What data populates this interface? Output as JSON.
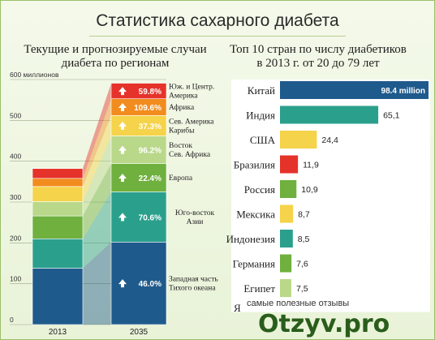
{
  "title": "Статистика сахарного диабета",
  "left_subtitle_1": "Текущие и прогнозируемые случаи",
  "left_subtitle_2": "диабета по регионам",
  "right_subtitle_1": "Топ 10 стран по числу диабетиков",
  "right_subtitle_2": "в 2013 г. от 20 до 79 лет",
  "watermark_text": "самые полезные отзывы",
  "watermark_logo": "Otzyv.pro",
  "partial_last_row": "Я",
  "chart_data": [
    {
      "type": "bar",
      "stacked": true,
      "categories": [
        "2013",
        "2035"
      ],
      "ylim": [
        0,
        600
      ],
      "yticks": [
        "0",
        "100",
        "200",
        "300",
        "400",
        "500",
        "600 миллионов"
      ],
      "series": [
        {
          "name": "Западная часть Тихого океана",
          "color": "#1f5a8c",
          "values": [
            138,
            202
          ],
          "growth": "46.0%"
        },
        {
          "name": "Юго-восток Азии",
          "color": "#2aa08c",
          "values": [
            72,
            123
          ],
          "growth": "70.6%"
        },
        {
          "name": "Европа",
          "color": "#6fb03e",
          "values": [
            56,
            69
          ],
          "growth": "22.4%"
        },
        {
          "name": "Восток Сев. Африка",
          "color": "#b9d88a",
          "values": [
            35,
            68
          ],
          "growth": "96.2%"
        },
        {
          "name": "Сев. Америка Карибы",
          "color": "#f5d34a",
          "values": [
            37,
            50
          ],
          "growth": "37.3%"
        },
        {
          "name": "Африка",
          "color": "#f28c1e",
          "values": [
            20,
            41
          ],
          "growth": "109.6%"
        },
        {
          "name": "Юж. и Центр. Америка",
          "color": "#e5322a",
          "values": [
            24,
            38
          ],
          "growth": "59.8%"
        }
      ]
    },
    {
      "type": "bar",
      "orientation": "horizontal",
      "categories": [
        "Китай",
        "Индия",
        "США",
        "Бразилия",
        "Россия",
        "Мексика",
        "Индонезия",
        "Германия",
        "Египет"
      ],
      "values": [
        98.4,
        65.1,
        24.4,
        11.9,
        10.9,
        8.7,
        8.5,
        7.6,
        7.5
      ],
      "value_labels": [
        "98.4 million",
        "65,1",
        "24,4",
        "11,9",
        "10,9",
        "8,7",
        "8,5",
        "7,6",
        "7,5"
      ],
      "colors": [
        "#1f5a8c",
        "#2aa08c",
        "#f5d34a",
        "#e5322a",
        "#6fb03e",
        "#f5d34a",
        "#2aa08c",
        "#6fb03e",
        "#b9d88a"
      ]
    }
  ]
}
